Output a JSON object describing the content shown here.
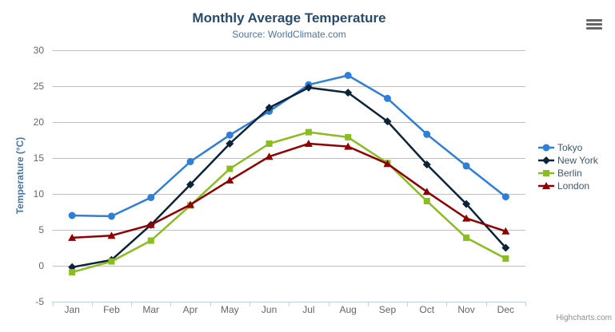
{
  "chart_data": {
    "type": "line",
    "title": "Monthly Average Temperature",
    "subtitle": "Source: WorldClimate.com",
    "categories": [
      "Jan",
      "Feb",
      "Mar",
      "Apr",
      "May",
      "Jun",
      "Jul",
      "Aug",
      "Sep",
      "Oct",
      "Nov",
      "Dec"
    ],
    "series": [
      {
        "name": "Tokyo",
        "color": "#2f7ed8",
        "marker": "circle",
        "values": [
          7.0,
          6.9,
          9.5,
          14.5,
          18.2,
          21.5,
          25.2,
          26.5,
          23.3,
          18.3,
          13.9,
          9.6
        ]
      },
      {
        "name": "New York",
        "color": "#0d233a",
        "marker": "diamond",
        "values": [
          -0.2,
          0.8,
          5.7,
          11.3,
          17.0,
          22.0,
          24.8,
          24.1,
          20.1,
          14.1,
          8.6,
          2.5
        ]
      },
      {
        "name": "Berlin",
        "color": "#8bbc21",
        "marker": "square",
        "values": [
          -0.9,
          0.6,
          3.5,
          8.4,
          13.5,
          17.0,
          18.6,
          17.9,
          14.3,
          9.0,
          3.9,
          1.0
        ]
      },
      {
        "name": "London",
        "color": "#910000",
        "marker": "triangle",
        "values": [
          3.9,
          4.2,
          5.7,
          8.5,
          11.9,
          15.2,
          17.0,
          16.6,
          14.2,
          10.3,
          6.6,
          4.8
        ]
      }
    ],
    "xlabel": "",
    "ylabel": "Temperature (°C)",
    "ylim": [
      -5,
      30
    ],
    "yticks": [
      30,
      25,
      20,
      15,
      10,
      5,
      0,
      -5
    ],
    "grid": true,
    "legend_position": "right"
  },
  "credits": {
    "label": "Highcharts.com"
  },
  "export_menu": {
    "icon": "hamburger-icon"
  },
  "colors": {
    "background": "#ffffff",
    "title": "#274b6d",
    "subtitle": "#4d759e",
    "yaxis_title": "#4572a7",
    "axis_label": "#666666",
    "gridline": "#c0c0c0",
    "axis_line": "#c0d0e0",
    "legend_text": "#3e576f",
    "credits": "#909090",
    "export_icon": "#666666"
  }
}
